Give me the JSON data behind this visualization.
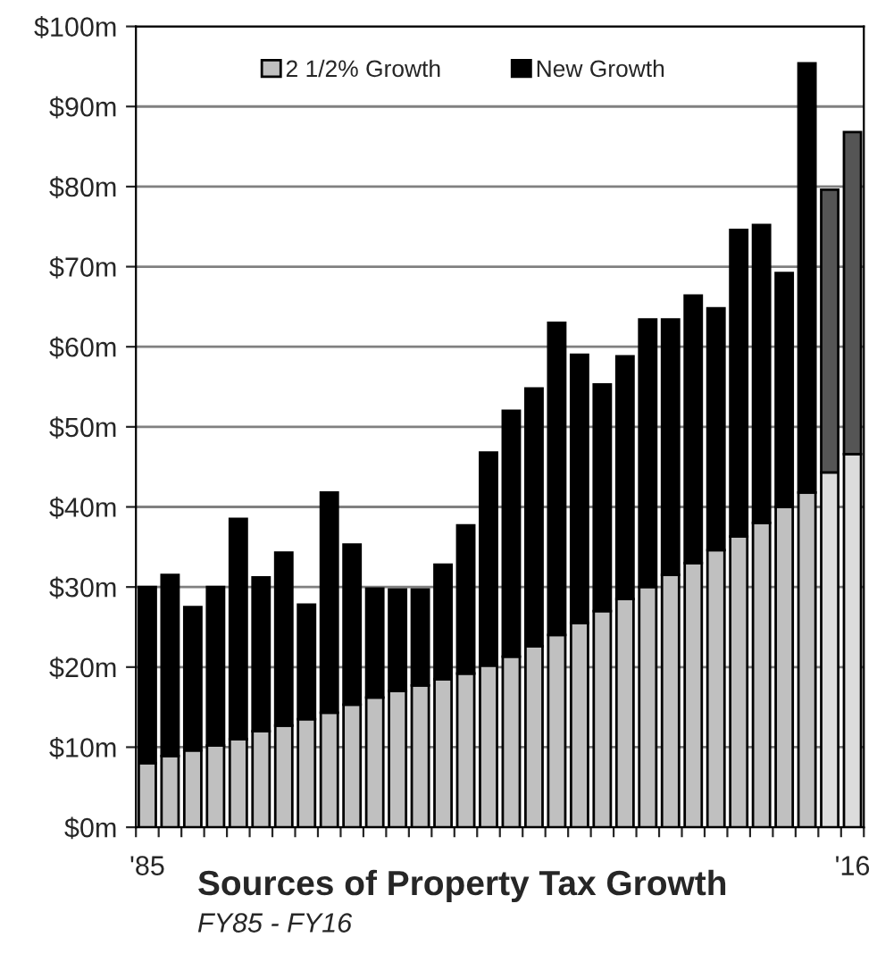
{
  "chart_data": {
    "type": "bar",
    "title": "Sources of Property Tax Growth",
    "subtitle": "FY85 - FY16",
    "categories": [
      "'85",
      null,
      null,
      null,
      null,
      null,
      null,
      null,
      null,
      null,
      null,
      null,
      null,
      null,
      null,
      null,
      null,
      null,
      null,
      null,
      null,
      null,
      null,
      null,
      null,
      null,
      null,
      null,
      null,
      null,
      null,
      "'16"
    ],
    "stacked": true,
    "series": [
      {
        "name": "2 1/2% Growth",
        "color": "#c0c0c0",
        "colors": [
          "#c0c0c0",
          "#c0c0c0",
          "#c0c0c0",
          "#c0c0c0",
          "#c0c0c0",
          "#c0c0c0",
          "#c0c0c0",
          "#c0c0c0",
          "#c0c0c0",
          "#c0c0c0",
          "#c0c0c0",
          "#c0c0c0",
          "#c0c0c0",
          "#c0c0c0",
          "#c0c0c0",
          "#c0c0c0",
          "#c0c0c0",
          "#c0c0c0",
          "#c0c0c0",
          "#c0c0c0",
          "#c0c0c0",
          "#c0c0c0",
          "#c0c0c0",
          "#c0c0c0",
          "#c0c0c0",
          "#c0c0c0",
          "#c0c0c0",
          "#c0c0c0",
          "#c0c0c0",
          "#c0c0c0",
          "#dcdcdc",
          "#dcdcdc"
        ],
        "values": [
          8,
          8.9,
          9.6,
          10.2,
          11,
          12,
          12.7,
          13.5,
          14.3,
          15.3,
          16.2,
          17,
          17.7,
          18.5,
          19.2,
          20.2,
          21.3,
          22.6,
          24,
          25.5,
          27,
          28.5,
          30,
          31.5,
          33,
          34.6,
          36.3,
          38,
          40,
          41.8,
          44.3,
          46.6
        ]
      },
      {
        "name": "New Growth",
        "color": "#000000",
        "colors": [
          "#000000",
          "#000000",
          "#000000",
          "#000000",
          "#000000",
          "#000000",
          "#000000",
          "#000000",
          "#000000",
          "#000000",
          "#000000",
          "#000000",
          "#000000",
          "#000000",
          "#000000",
          "#000000",
          "#000000",
          "#000000",
          "#000000",
          "#000000",
          "#000000",
          "#000000",
          "#000000",
          "#000000",
          "#000000",
          "#000000",
          "#000000",
          "#000000",
          "#000000",
          "#000000",
          "#555555",
          "#555555"
        ],
        "values": [
          22,
          22.6,
          17.9,
          19.8,
          27.5,
          19.2,
          21.6,
          14.3,
          27.5,
          20,
          13.6,
          12.7,
          12,
          14.3,
          18.5,
          26.6,
          30.7,
          32.2,
          39,
          33.5,
          28.3,
          30.3,
          33.4,
          31.9,
          33.4,
          30.2,
          38.3,
          37.2,
          29.2,
          53.6,
          35.3,
          40.2
        ]
      }
    ],
    "ylim": [
      0,
      100
    ],
    "yticks": [
      {
        "value": 0,
        "label": "$0m"
      },
      {
        "value": 10,
        "label": "$10m"
      },
      {
        "value": 20,
        "label": "$20m"
      },
      {
        "value": 30,
        "label": "$30m"
      },
      {
        "value": 40,
        "label": "$40m"
      },
      {
        "value": 50,
        "label": "$50m"
      },
      {
        "value": 60,
        "label": "$60m"
      },
      {
        "value": 70,
        "label": "$70m"
      },
      {
        "value": 80,
        "label": "$80m"
      },
      {
        "value": 90,
        "label": "$90m"
      },
      {
        "value": 100,
        "label": "$100m"
      }
    ],
    "grid": "y",
    "legend": "top"
  }
}
